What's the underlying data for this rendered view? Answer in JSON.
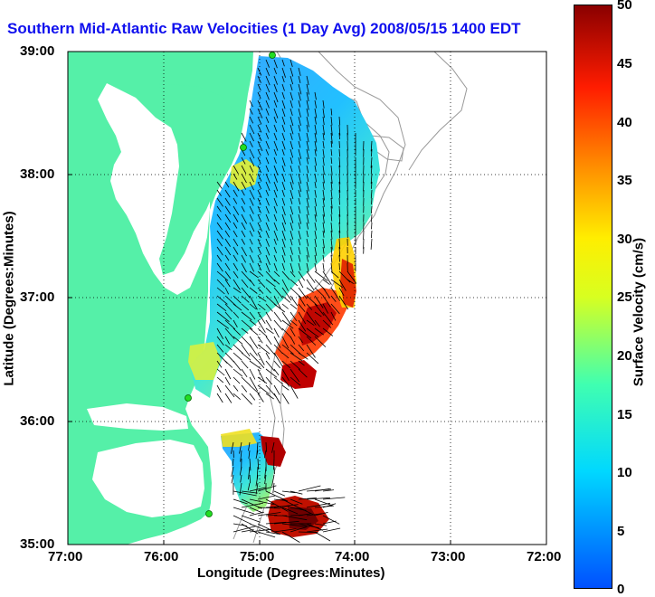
{
  "title": "Southern Mid-Atlantic Raw Velocities (1 Day Avg) 2008/05/15 1400 EDT",
  "xaxis": {
    "label": "Longitude (Degrees:Minutes)",
    "ticks": [
      "77:00",
      "76:00",
      "75:00",
      "74:00",
      "73:00",
      "72:00"
    ]
  },
  "yaxis": {
    "label": "Latitude (Degrees:Minutes)",
    "ticks": [
      "39:00",
      "38:00",
      "37:00",
      "36:00",
      "35:00"
    ]
  },
  "colorbar": {
    "label": "Surface Velocity (cm/s)",
    "ticks": [
      "50",
      "45",
      "40",
      "35",
      "30",
      "25",
      "20",
      "15",
      "10",
      "5",
      "0"
    ],
    "range": [
      0,
      50
    ]
  },
  "colors": {
    "land": "#55f0a8",
    "title": "#1010ee",
    "station": "#22dd22"
  }
}
